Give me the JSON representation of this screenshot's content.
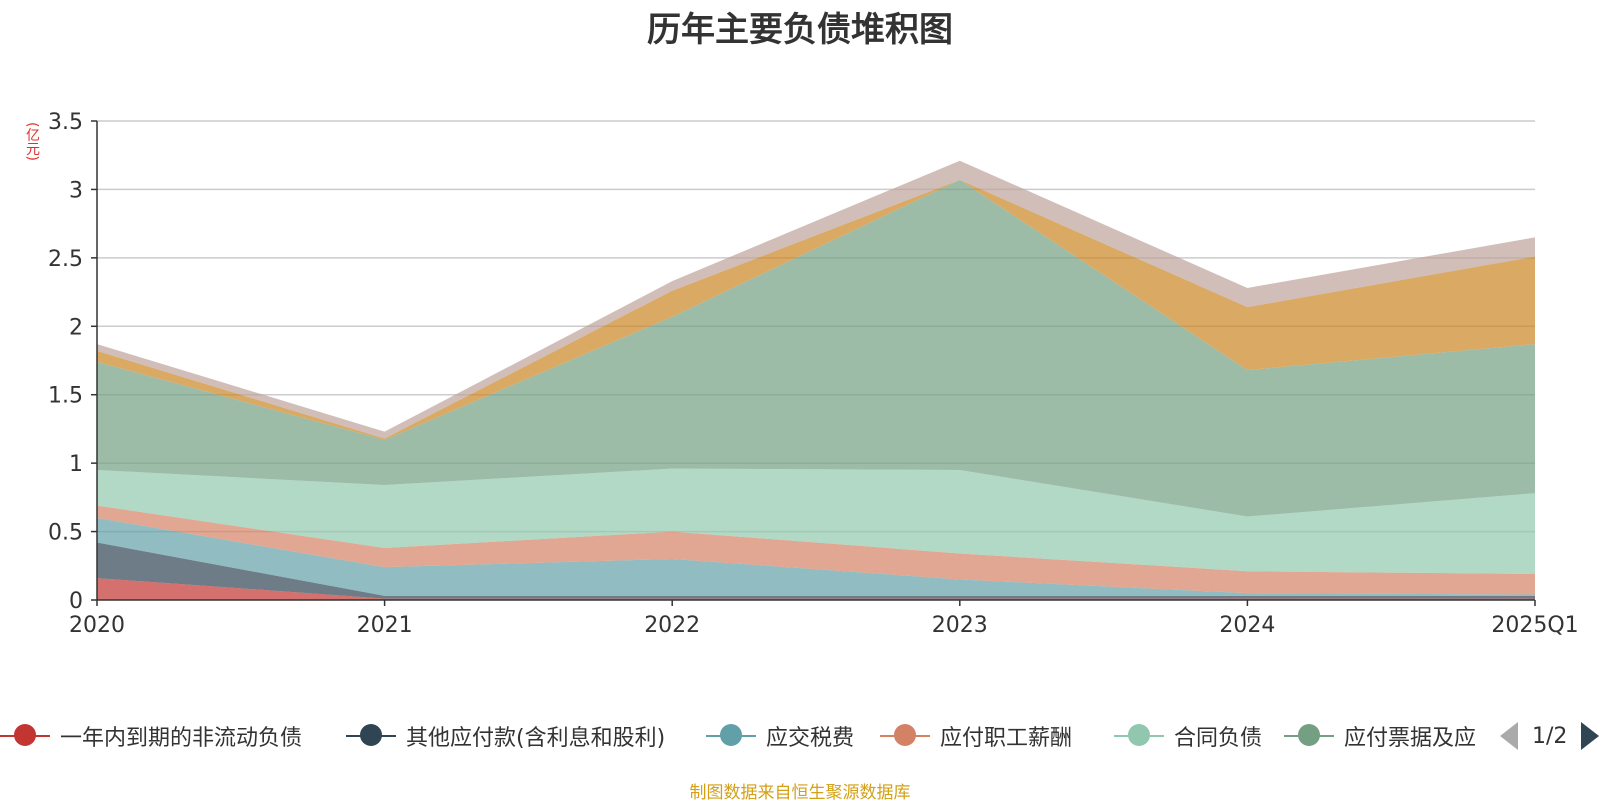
{
  "chart_data": {
    "type": "area",
    "stacked": true,
    "title": "历年主要负债堆积图",
    "ylabel": "(亿元)",
    "categories": [
      "2020",
      "2021",
      "2022",
      "2023",
      "2024",
      "2025Q1"
    ],
    "ylim": [
      0,
      3.5
    ],
    "yticks": [
      "0",
      "0.5",
      "1",
      "1.5",
      "2",
      "2.5",
      "3",
      "3.5"
    ],
    "grid": true,
    "series": [
      {
        "name": "一年内到期的非流动负债",
        "color": "#c23531",
        "values": [
          0.16,
          0.01,
          0.01,
          0.01,
          0.01,
          0.01
        ]
      },
      {
        "name": "其他应付款(含利息和股利)",
        "color": "#2f4554",
        "values": [
          0.26,
          0.02,
          0.02,
          0.02,
          0.02,
          0.02
        ]
      },
      {
        "name": "应交税费",
        "color": "#61a0a8",
        "values": [
          0.18,
          0.21,
          0.27,
          0.12,
          0.02,
          0.01
        ]
      },
      {
        "name": "应付职工薪酬",
        "color": "#d48265",
        "values": [
          0.09,
          0.14,
          0.2,
          0.19,
          0.16,
          0.15
        ]
      },
      {
        "name": "合同负债",
        "color": "#91c7ae",
        "values": [
          0.26,
          0.46,
          0.46,
          0.61,
          0.4,
          0.59
        ]
      },
      {
        "name": "应付票据及应付账款",
        "color": "#749f83",
        "values": [
          0.79,
          0.33,
          1.11,
          2.12,
          1.07,
          1.09
        ]
      },
      {
        "name": "",
        "color": "#ca8622",
        "values": [
          0.08,
          0.01,
          0.19,
          0.0,
          0.46,
          0.64
        ]
      },
      {
        "name": "",
        "color": "#bda29a",
        "values": [
          0.05,
          0.05,
          0.07,
          0.14,
          0.14,
          0.14
        ]
      }
    ]
  },
  "legend": {
    "items": [
      {
        "label": "一年内到期的非流动负债",
        "color": "#c23531"
      },
      {
        "label": "其他应付款(含利息和股利)",
        "color": "#2f4554"
      },
      {
        "label": "应交税费",
        "color": "#61a0a8"
      },
      {
        "label": "应付职工薪酬",
        "color": "#d48265"
      },
      {
        "label": "合同负债",
        "color": "#91c7ae"
      },
      {
        "label": "应付票据及应",
        "color": "#749f83"
      }
    ],
    "page": "1/2"
  },
  "source": "制图数据来自恒生聚源数据库"
}
